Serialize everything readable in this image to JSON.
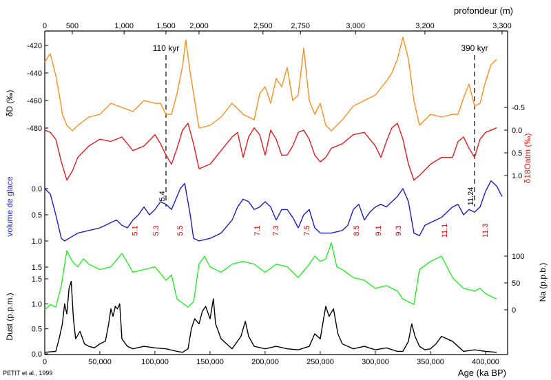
{
  "chart_data": {
    "type": "line",
    "x_axis": {
      "label": "Age (ka BP)",
      "range": [
        0,
        420000
      ],
      "ticks": [
        "0",
        "50,000",
        "100,000",
        "150,000",
        "200,000",
        "250,000",
        "300,000",
        "350,000",
        "400,000"
      ],
      "tick_values": [
        0,
        50000,
        100000,
        150000,
        200000,
        250000,
        300000,
        350000,
        400000
      ]
    },
    "top_axis": {
      "label": "profondeur (m)",
      "ticks": [
        "0",
        "500",
        "1,000",
        "1,500",
        "2,000",
        "2,500",
        "2,750",
        "3,000",
        "3,200",
        "3,300"
      ],
      "tick_ages": [
        0,
        25000,
        72000,
        110000,
        140000,
        198000,
        232000,
        282000,
        345000,
        415000
      ]
    },
    "markers": [
      {
        "label": "110 kyr",
        "age": 110000
      },
      {
        "label": "390 kyr",
        "age": 390000
      }
    ],
    "series": [
      {
        "name": "δD (‰)",
        "color": "#ff8c1a",
        "axis_label": "δD (‰)",
        "axis_ticks": [
          "-420",
          "-440",
          "-460",
          "-480"
        ],
        "axis_tick_values": [
          -420,
          -440,
          -460,
          -480
        ],
        "x": [
          0,
          5000,
          10000,
          13000,
          16000,
          20000,
          25000,
          30000,
          40000,
          50000,
          60000,
          70000,
          80000,
          90000,
          100000,
          105000,
          110000,
          115000,
          120000,
          125000,
          128000,
          132000,
          140000,
          150000,
          160000,
          170000,
          180000,
          190000,
          195000,
          200000,
          205000,
          210000,
          215000,
          220000,
          225000,
          230000,
          235000,
          240000,
          245000,
          250000,
          255000,
          260000,
          270000,
          280000,
          290000,
          300000,
          310000,
          315000,
          320000,
          325000,
          330000,
          335000,
          340000,
          350000,
          360000,
          370000,
          375000,
          380000,
          385000,
          390000,
          395000,
          400000,
          405000,
          410000
        ],
        "y": [
          -432,
          -426,
          -442,
          -455,
          -470,
          -478,
          -482,
          -478,
          -472,
          -470,
          -462,
          -465,
          -468,
          -460,
          -462,
          -462,
          -470,
          -470,
          -455,
          -435,
          -416,
          -440,
          -480,
          -478,
          -472,
          -462,
          -470,
          -474,
          -455,
          -450,
          -462,
          -444,
          -450,
          -436,
          -460,
          -456,
          -422,
          -460,
          -470,
          -462,
          -478,
          -482,
          -474,
          -464,
          -460,
          -456,
          -446,
          -440,
          -430,
          -414,
          -430,
          -460,
          -478,
          -470,
          -472,
          -470,
          -470,
          -458,
          -448,
          -464,
          -462,
          -446,
          -434,
          -430
        ]
      },
      {
        "name": "δ18Oatm (‰)",
        "color": "#e41a1c",
        "axis_label": "δ18Oatm (‰)",
        "axis_ticks": [
          "-0.5",
          "0.0",
          "0.5",
          "1.0"
        ],
        "axis_tick_values": [
          -0.5,
          0.0,
          0.5,
          1.0
        ],
        "x": [
          0,
          5000,
          10000,
          15000,
          20000,
          25000,
          30000,
          40000,
          50000,
          60000,
          70000,
          80000,
          90000,
          100000,
          105000,
          110000,
          115000,
          120000,
          125000,
          130000,
          135000,
          140000,
          150000,
          160000,
          170000,
          175000,
          180000,
          185000,
          190000,
          195000,
          200000,
          205000,
          210000,
          215000,
          220000,
          225000,
          230000,
          235000,
          240000,
          245000,
          250000,
          255000,
          260000,
          270000,
          280000,
          290000,
          300000,
          305000,
          310000,
          315000,
          320000,
          325000,
          330000,
          335000,
          340000,
          350000,
          360000,
          370000,
          375000,
          380000,
          385000,
          390000,
          395000,
          400000,
          410000
        ],
        "y": [
          0.0,
          0.05,
          0.2,
          0.7,
          1.1,
          0.9,
          0.6,
          0.35,
          0.2,
          0.25,
          0.15,
          0.45,
          0.35,
          0.1,
          0.3,
          0.55,
          0.75,
          0.4,
          0.0,
          -0.15,
          0.3,
          0.85,
          0.75,
          0.45,
          0.15,
          0.05,
          0.6,
          0.15,
          -0.05,
          0.1,
          0.55,
          0.0,
          0.2,
          0.55,
          0.55,
          0.35,
          0.05,
          0.0,
          0.2,
          0.55,
          0.7,
          0.6,
          0.4,
          0.3,
          0.1,
          0.05,
          0.35,
          0.6,
          0.25,
          -0.05,
          -0.15,
          0.2,
          0.75,
          1.1,
          1.0,
          0.75,
          0.6,
          0.6,
          0.25,
          0.15,
          0.4,
          0.6,
          0.2,
          0.05,
          -0.05
        ]
      },
      {
        "name": "volume de glace",
        "color": "#1a1ac8",
        "axis_label": "volume de glace",
        "axis_ticks": [
          "0.0",
          "0.5",
          "1.0",
          "1.5"
        ],
        "axis_tick_values": [
          0.0,
          0.5,
          1.0,
          1.5
        ],
        "x": [
          0,
          5000,
          10000,
          15000,
          18000,
          22000,
          30000,
          40000,
          50000,
          55000,
          60000,
          65000,
          70000,
          75000,
          80000,
          85000,
          90000,
          95000,
          100000,
          105000,
          110000,
          115000,
          120000,
          123000,
          127000,
          132000,
          135000,
          140000,
          150000,
          160000,
          170000,
          175000,
          180000,
          185000,
          190000,
          195000,
          200000,
          205000,
          210000,
          215000,
          220000,
          225000,
          230000,
          235000,
          240000,
          245000,
          250000,
          260000,
          270000,
          275000,
          280000,
          285000,
          290000,
          295000,
          300000,
          305000,
          310000,
          315000,
          320000,
          325000,
          330000,
          335000,
          340000,
          345000,
          350000,
          360000,
          370000,
          375000,
          380000,
          385000,
          390000,
          395000,
          400000,
          405000,
          410000,
          415000
        ],
        "y": [
          0.0,
          0.1,
          0.5,
          0.95,
          1.0,
          0.95,
          0.85,
          0.8,
          0.75,
          0.7,
          0.65,
          0.6,
          0.7,
          0.75,
          0.6,
          0.5,
          0.35,
          0.5,
          0.4,
          0.25,
          0.3,
          0.4,
          0.15,
          0.0,
          -0.1,
          0.5,
          0.95,
          1.0,
          0.95,
          0.85,
          0.6,
          0.35,
          0.2,
          0.25,
          0.4,
          0.35,
          0.25,
          0.35,
          0.6,
          0.4,
          0.4,
          0.55,
          0.75,
          0.5,
          0.4,
          0.75,
          0.85,
          0.85,
          0.8,
          0.7,
          0.4,
          0.3,
          0.6,
          0.45,
          0.35,
          0.3,
          0.35,
          0.25,
          0.15,
          0.0,
          0.25,
          0.85,
          0.9,
          0.7,
          0.65,
          0.55,
          0.35,
          0.3,
          0.5,
          0.4,
          0.45,
          0.35,
          0.05,
          -0.15,
          -0.05,
          0.15
        ]
      },
      {
        "name": "Na (p.p.b.)",
        "color": "#22ee22",
        "axis_label": "Na (p.p.b.)",
        "axis_ticks": [
          "100",
          "50",
          "0"
        ],
        "axis_tick_values": [
          100,
          50,
          0
        ],
        "x": [
          0,
          5000,
          10000,
          15000,
          20000,
          25000,
          30000,
          35000,
          40000,
          50000,
          60000,
          70000,
          80000,
          90000,
          100000,
          110000,
          115000,
          120000,
          130000,
          135000,
          140000,
          145000,
          150000,
          160000,
          170000,
          180000,
          190000,
          200000,
          210000,
          220000,
          230000,
          240000,
          245000,
          250000,
          255000,
          260000,
          265000,
          270000,
          280000,
          290000,
          300000,
          310000,
          320000,
          325000,
          330000,
          335000,
          340000,
          350000,
          355000,
          360000,
          370000,
          380000,
          390000,
          395000,
          400000,
          410000
        ],
        "y": [
          0,
          10,
          5,
          45,
          110,
          90,
          80,
          95,
          85,
          75,
          80,
          105,
          70,
          75,
          80,
          55,
          65,
          20,
          5,
          15,
          85,
          100,
          80,
          70,
          85,
          90,
          85,
          70,
          85,
          80,
          60,
          85,
          100,
          90,
          95,
          125,
          80,
          75,
          60,
          55,
          40,
          45,
          35,
          20,
          15,
          10,
          75,
          90,
          95,
          100,
          60,
          40,
          35,
          40,
          30,
          20
        ]
      },
      {
        "name": "Dust (p.p.m.)",
        "color": "#000000",
        "axis_label": "Dust (p.p.m.)",
        "axis_ticks": [
          "1.5",
          "1.0",
          "0.5",
          "0.0"
        ],
        "axis_tick_values": [
          1.5,
          1.0,
          0.5,
          0.0
        ],
        "x": [
          0,
          5000,
          10000,
          13000,
          16000,
          18000,
          20000,
          22000,
          24000,
          26000,
          28000,
          32000,
          36000,
          40000,
          45000,
          50000,
          55000,
          58000,
          60000,
          62000,
          64000,
          66000,
          68000,
          70000,
          75000,
          80000,
          90000,
          100000,
          110000,
          120000,
          125000,
          130000,
          133000,
          136000,
          140000,
          143000,
          146000,
          150000,
          153000,
          155000,
          160000,
          165000,
          170000,
          178000,
          182000,
          185000,
          190000,
          200000,
          210000,
          220000,
          230000,
          240000,
          245000,
          250000,
          253000,
          255000,
          258000,
          262000,
          266000,
          270000,
          280000,
          290000,
          300000,
          310000,
          320000,
          325000,
          330000,
          333000,
          336000,
          340000,
          345000,
          350000,
          355000,
          360000,
          370000,
          380000,
          390000,
          400000,
          410000
        ],
        "y": [
          0.03,
          0.04,
          0.05,
          0.3,
          0.6,
          1.0,
          0.8,
          1.3,
          1.45,
          0.7,
          0.3,
          0.45,
          0.2,
          0.15,
          0.12,
          0.2,
          0.25,
          0.6,
          0.9,
          0.75,
          0.95,
          0.9,
          1.0,
          0.3,
          0.15,
          0.1,
          0.15,
          0.12,
          0.1,
          0.05,
          0.03,
          0.1,
          0.5,
          0.7,
          0.6,
          0.85,
          0.95,
          0.7,
          1.1,
          0.6,
          0.3,
          0.2,
          0.1,
          0.35,
          0.65,
          0.35,
          0.15,
          0.1,
          0.15,
          0.1,
          0.08,
          0.15,
          0.4,
          0.3,
          0.7,
          0.95,
          0.75,
          0.9,
          0.4,
          0.2,
          0.1,
          0.15,
          0.08,
          0.12,
          0.05,
          0.05,
          0.25,
          0.6,
          0.35,
          0.15,
          0.08,
          0.1,
          0.2,
          0.35,
          0.25,
          0.05,
          0.08,
          0.05,
          0.03
        ]
      }
    ],
    "stage_labels": [
      {
        "label": "5.1",
        "age": 84000
      },
      {
        "label": "5.3",
        "age": 103000
      },
      {
        "label": "5.5",
        "age": 125000
      },
      {
        "label": "7.1",
        "age": 195000
      },
      {
        "label": "7.3",
        "age": 212000
      },
      {
        "label": "7.5",
        "age": 240000
      },
      {
        "label": "8.5",
        "age": 285000
      },
      {
        "label": "9.1",
        "age": 305000
      },
      {
        "label": "9.3",
        "age": 323000
      },
      {
        "label": "11.1",
        "age": 365000
      },
      {
        "label": "11.3",
        "age": 402000
      }
    ],
    "annotations": [
      {
        "label": "5.4",
        "age": 110000
      },
      {
        "label": "11.24",
        "age": 390000
      }
    ],
    "credit": "PETIT et al., 1999"
  }
}
